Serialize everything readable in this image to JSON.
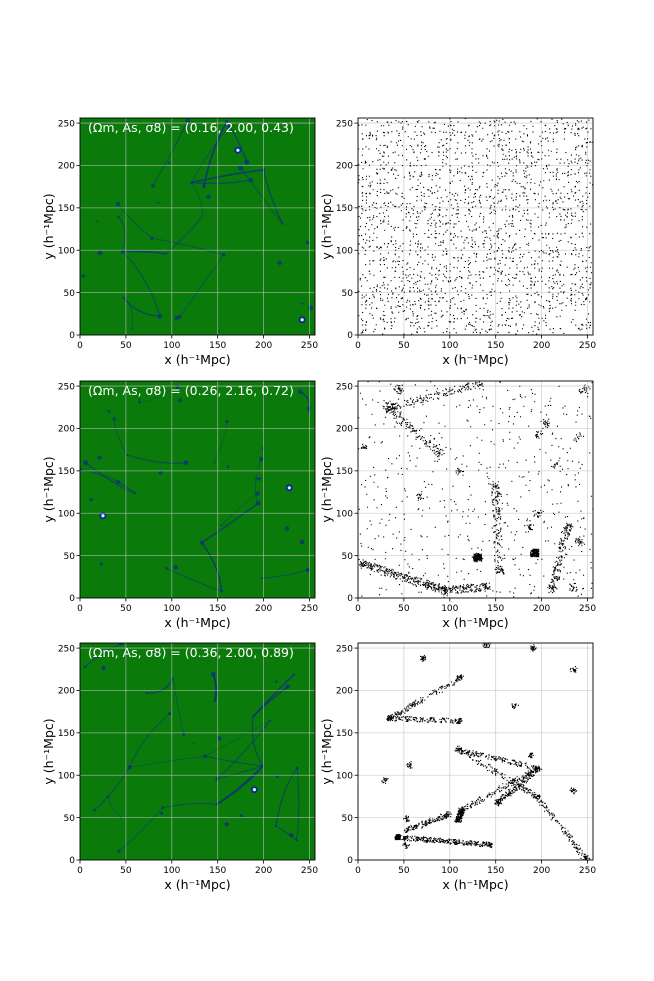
{
  "colors": {
    "field_background": "#0a7a0a",
    "filament": "#0b2a8a",
    "halo_core": "#dff4ff",
    "grid": "#b8b8b8",
    "particle": "#000000"
  },
  "chart_data": [
    {
      "type": "heatmap",
      "panel": "density-field",
      "label": "(Ωm, As, σ8) = (0.16, 2.00, 0.43)",
      "xlabel": "x (h⁻¹Mpc)",
      "ylabel": "y (h⁻¹Mpc)",
      "xlim": [
        0,
        256
      ],
      "ylim": [
        0,
        256
      ],
      "grid": true,
      "xticks": [
        0,
        50,
        100,
        150,
        200,
        250
      ],
      "yticks": [
        0,
        50,
        100,
        150,
        200,
        250
      ],
      "bright_spots": [
        [
          172,
          218
        ],
        [
          242,
          18
        ]
      ]
    },
    {
      "type": "scatter",
      "panel": "particles",
      "xlabel": "x (h⁻¹Mpc)",
      "ylabel": "y (h⁻¹Mpc)",
      "xlim": [
        0,
        256
      ],
      "ylim": [
        0,
        256
      ],
      "grid": true,
      "xticks": [
        0,
        50,
        100,
        150,
        200,
        250
      ],
      "yticks": [
        0,
        50,
        100,
        150,
        200,
        250
      ],
      "distribution": "grid-like, weakly clustered"
    },
    {
      "type": "heatmap",
      "panel": "density-field",
      "label": "(Ωm, As, σ8) = (0.26, 2.16, 0.72)",
      "xlabel": "x (h⁻¹Mpc)",
      "ylabel": "y (h⁻¹Mpc)",
      "xlim": [
        0,
        256
      ],
      "ylim": [
        0,
        256
      ],
      "grid": true,
      "xticks": [
        0,
        50,
        100,
        150,
        200,
        250
      ],
      "yticks": [
        0,
        50,
        100,
        150,
        200,
        250
      ],
      "bright_spots": [
        [
          228,
          130
        ],
        [
          25,
          97
        ]
      ]
    },
    {
      "type": "scatter",
      "panel": "particles",
      "xlabel": "x (h⁻¹Mpc)",
      "ylabel": "y (h⁻¹Mpc)",
      "xlim": [
        0,
        256
      ],
      "ylim": [
        0,
        256
      ],
      "grid": true,
      "xticks": [
        0,
        50,
        100,
        150,
        200,
        250
      ],
      "yticks": [
        0,
        50,
        100,
        150,
        200,
        250
      ],
      "distribution": "filamentary"
    },
    {
      "type": "heatmap",
      "panel": "density-field",
      "label": "(Ωm, As, σ8) = (0.36, 2.00, 0.89)",
      "xlabel": "x (h⁻¹Mpc)",
      "ylabel": "y (h⁻¹Mpc)",
      "xlim": [
        0,
        256
      ],
      "ylim": [
        0,
        256
      ],
      "grid": true,
      "xticks": [
        0,
        50,
        100,
        150,
        200,
        250
      ],
      "yticks": [
        0,
        50,
        100,
        150,
        200,
        250
      ],
      "bright_spots": [
        [
          190,
          83
        ]
      ]
    },
    {
      "type": "scatter",
      "panel": "particles",
      "xlabel": "x (h⁻¹Mpc)",
      "ylabel": "y (h⁻¹Mpc)",
      "xlim": [
        0,
        256
      ],
      "ylim": [
        0,
        256
      ],
      "grid": true,
      "xticks": [
        0,
        50,
        100,
        150,
        200,
        250
      ],
      "yticks": [
        0,
        50,
        100,
        150,
        200,
        250
      ],
      "distribution": "strongly clustered filaments"
    }
  ]
}
